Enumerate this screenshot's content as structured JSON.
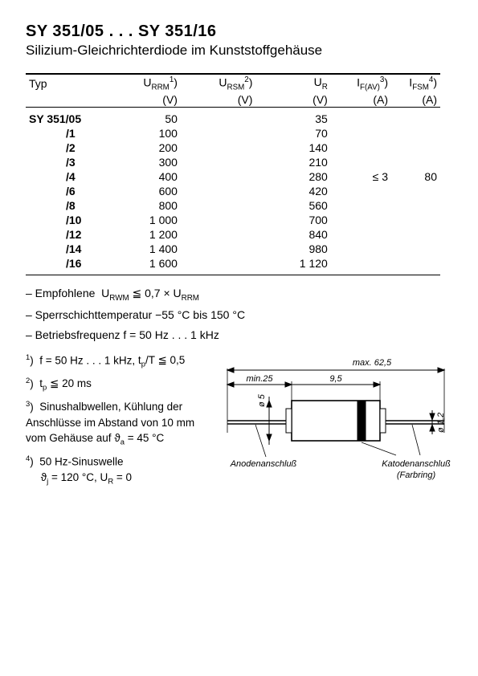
{
  "header": {
    "title": "SY 351/05 . . . SY 351/16",
    "subtitle": "Silizium-Gleichrichterdiode im Kunststoffgehäuse"
  },
  "table": {
    "columns": {
      "typ": {
        "label": "Typ",
        "unit": ""
      },
      "urrm": {
        "label_html": "U<sub>RRM</sub><sup>1</sup>)",
        "unit": "(V)"
      },
      "ursm": {
        "label_html": "U<sub>RSM</sub><sup>2</sup>)",
        "unit": "(V)"
      },
      "ur": {
        "label_html": "U<sub>R</sub>",
        "unit": "(V)"
      },
      "ifav": {
        "label_html": "I<sub>F(AV)</sub><sup>3</sup>)",
        "unit": "(A)"
      },
      "ifsm": {
        "label_html": "I<sub>FSM</sub><sup>4</sup>)",
        "unit": "(A)"
      }
    },
    "rows": [
      {
        "typ": "SY 351/05",
        "urrm": "50",
        "ursm": "",
        "ur": "35",
        "ifav": "",
        "ifsm": ""
      },
      {
        "typ": "/1",
        "urrm": "100",
        "ursm": "",
        "ur": "70",
        "ifav": "",
        "ifsm": ""
      },
      {
        "typ": "/2",
        "urrm": "200",
        "ursm": "",
        "ur": "140",
        "ifav": "",
        "ifsm": ""
      },
      {
        "typ": "/3",
        "urrm": "300",
        "ursm": "",
        "ur": "210",
        "ifav": "",
        "ifsm": ""
      },
      {
        "typ": "/4",
        "urrm": "400",
        "ursm": "",
        "ur": "280",
        "ifav": "≤ 3",
        "ifsm": "80"
      },
      {
        "typ": "/6",
        "urrm": "600",
        "ursm": "",
        "ur": "420",
        "ifav": "",
        "ifsm": ""
      },
      {
        "typ": "/8",
        "urrm": "800",
        "ursm": "",
        "ur": "560",
        "ifav": "",
        "ifsm": ""
      },
      {
        "typ": "/10",
        "urrm": "1 000",
        "ursm": "",
        "ur": "700",
        "ifav": "",
        "ifsm": ""
      },
      {
        "typ": "/12",
        "urrm": "1 200",
        "ursm": "",
        "ur": "840",
        "ifav": "",
        "ifsm": ""
      },
      {
        "typ": "/14",
        "urrm": "1 400",
        "ursm": "",
        "ur": "980",
        "ifav": "",
        "ifsm": ""
      },
      {
        "typ": "/16",
        "urrm": "1 600",
        "ursm": "",
        "ur": "1 120",
        "ifav": "",
        "ifsm": ""
      }
    ]
  },
  "notes": {
    "n1_html": "– Empfohlene &nbsp;U<sub>RWM</sub> ≦ 0,7 × U<sub>RRM</sub>",
    "n2": "– Sperrschichttemperatur −55 °C bis 150 °C",
    "n3": "– Betriebsfrequenz f = 50 Hz . . . 1 kHz"
  },
  "footnotes": {
    "f1_html": "<sup>1</sup>)&nbsp; f = 50 Hz . . . 1 kHz, <span class='bold'>t<sub>p</sub>/T ≦ 0,5</span>",
    "f2_html": "<sup>2</sup>)&nbsp; <span class='bold'>t<sub>p</sub> ≦ 20 ms</span>",
    "f3_html": "<sup>3</sup>)&nbsp; <span class='bold'>Sinushalbwellen, Kühlung der Anschlüsse im Abstand von 10 mm vom Gehäuse auf ϑ<sub>a</sub> = 45 °C</span>",
    "f4_html": "<sup>4</sup>)&nbsp; 50 Hz-Sinuswelle<br>&nbsp;&nbsp;&nbsp;&nbsp; ϑ<sub>j</sub> = 120 °C, U<sub>R</sub> = 0"
  },
  "diagram": {
    "label_max": "max. 62,5",
    "label_min": "min.25",
    "label_body": "9,5",
    "label_lead_d": "ø 5",
    "label_wire_d": "ø 1,2",
    "label_anode": "Anodenanschluß",
    "label_cathode": "Katodenanschluß",
    "label_ring": "(Farbring)",
    "stroke": "#000000",
    "font_family": "Arial"
  }
}
